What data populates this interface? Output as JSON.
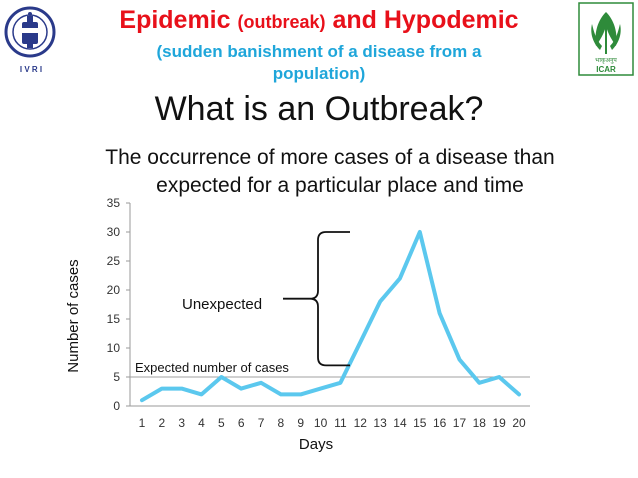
{
  "title": {
    "part1": "Epidemic ",
    "part2": "(outbreak)",
    "part3": " and Hypodemic",
    "line2": "(sudden banishment of a disease from a",
    "line3": "population)"
  },
  "heading": "What is an Outbreak?",
  "description": {
    "line1": "The occurrence of more cases of a disease than",
    "line2": "expected for a particular place and time"
  },
  "logos": {
    "left_text": "I V R I",
    "right_text": "ICAR",
    "right_hindi": "भाकृअनुप"
  },
  "colors": {
    "title_red": "#e8101a",
    "subtitle_blue": "#1fa6da",
    "line": "#5bc8ee",
    "logo_green": "#2e8b3a"
  },
  "chart_data": {
    "type": "line",
    "x": [
      1,
      2,
      3,
      4,
      5,
      6,
      7,
      8,
      9,
      10,
      11,
      12,
      13,
      14,
      15,
      16,
      17,
      18,
      19,
      20
    ],
    "series": [
      {
        "values": [
          1,
          3,
          3,
          2,
          5,
          3,
          4,
          2,
          2,
          3,
          4,
          11,
          18,
          22,
          30,
          16,
          8,
          4,
          5,
          2
        ]
      }
    ],
    "xlabel": "Days",
    "ylabel": "Number of cases",
    "ylim": [
      0,
      35
    ],
    "yticks": [
      0,
      5,
      10,
      15,
      20,
      25,
      30,
      35
    ],
    "xlim": [
      1,
      20
    ],
    "grid": "horizontal reference line at 5",
    "expected_level": 5,
    "annotations": {
      "expected": "Expected number of cases",
      "unexpected": "Unexpected",
      "brace_range": [
        7,
        30
      ]
    }
  }
}
